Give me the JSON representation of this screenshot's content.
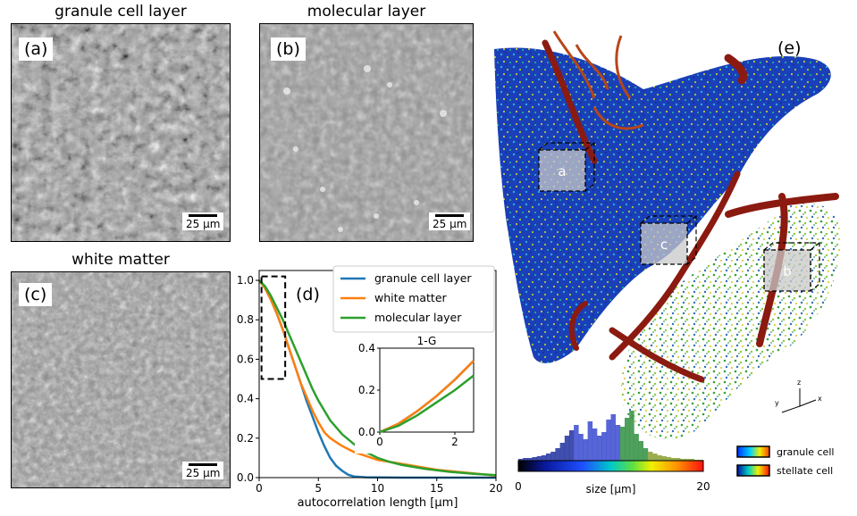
{
  "panels": {
    "a": {
      "title": "granule cell layer",
      "label": "(a)",
      "scale": "25 µm"
    },
    "b": {
      "title": "molecular layer",
      "label": "(b)",
      "scale": "25 µm"
    },
    "c": {
      "title": "white matter",
      "label": "(c)",
      "scale": "25 µm"
    },
    "d": {
      "label": "(d)"
    },
    "e": {
      "label": "(e)",
      "box_labels": [
        "a",
        "c",
        "b"
      ],
      "axes": {
        "x": "x",
        "y": "y",
        "z": "z"
      }
    }
  },
  "colors": {
    "granule cell layer": "#1f77b4",
    "white matter": "#ff7f0e",
    "molecular layer": "#2ca02c",
    "vessel": "#8b1a10"
  },
  "chart_data": [
    {
      "type": "line",
      "xlabel": "autocorrelation length [µm]",
      "ylabel": "",
      "xlim": [
        0,
        20
      ],
      "ylim": [
        0,
        1.05
      ],
      "xticks": [
        0,
        5,
        10,
        15,
        20
      ],
      "yticks": [
        0.0,
        0.2,
        0.4,
        0.6,
        0.8,
        1.0
      ],
      "legend_position": "top-right",
      "series": [
        {
          "name": "granule cell layer",
          "x": [
            0,
            0.5,
            1,
            1.5,
            2,
            2.5,
            3,
            3.5,
            4,
            4.5,
            5,
            5.5,
            6,
            6.5,
            7,
            7.5,
            8,
            9,
            10,
            12,
            15,
            20
          ],
          "y": [
            1.0,
            0.96,
            0.9,
            0.83,
            0.75,
            0.66,
            0.57,
            0.48,
            0.39,
            0.31,
            0.23,
            0.16,
            0.1,
            0.06,
            0.035,
            0.015,
            0.006,
            0.002,
            0.001,
            0,
            0,
            0
          ]
        },
        {
          "name": "white matter",
          "x": [
            0,
            0.5,
            1,
            1.5,
            2,
            2.5,
            3,
            3.5,
            4,
            4.5,
            5,
            5.5,
            6,
            6.5,
            7,
            8,
            9,
            10,
            12,
            15,
            20
          ],
          "y": [
            1.0,
            0.96,
            0.9,
            0.83,
            0.75,
            0.66,
            0.57,
            0.48,
            0.41,
            0.34,
            0.28,
            0.23,
            0.2,
            0.18,
            0.16,
            0.13,
            0.11,
            0.09,
            0.07,
            0.04,
            0.01
          ]
        },
        {
          "name": "molecular layer",
          "x": [
            0,
            0.5,
            1,
            1.5,
            2,
            2.5,
            3,
            3.5,
            4,
            4.5,
            5,
            6,
            7,
            8,
            9,
            10,
            11,
            12,
            14,
            16,
            18,
            20
          ],
          "y": [
            1.0,
            0.97,
            0.92,
            0.86,
            0.8,
            0.73,
            0.66,
            0.59,
            0.52,
            0.45,
            0.39,
            0.29,
            0.22,
            0.17,
            0.13,
            0.1,
            0.08,
            0.065,
            0.045,
            0.03,
            0.02,
            0.012
          ]
        }
      ],
      "annotation_box": {
        "x": [
          0.2,
          2.2
        ],
        "y": [
          0.5,
          1.02
        ]
      }
    },
    {
      "type": "line",
      "title": "1-G",
      "xlim": [
        0,
        2.5
      ],
      "ylim": [
        0,
        0.4
      ],
      "xticks": [
        0,
        2
      ],
      "yticks": [
        0.0,
        0.2,
        0.4
      ],
      "series": [
        {
          "name": "granule cell layer",
          "x": [
            0,
            0.5,
            1,
            1.5,
            2,
            2.5
          ],
          "y": [
            0,
            0.04,
            0.1,
            0.17,
            0.25,
            0.34
          ]
        },
        {
          "name": "white matter",
          "x": [
            0,
            0.5,
            1,
            1.5,
            2,
            2.5
          ],
          "y": [
            0,
            0.04,
            0.1,
            0.17,
            0.25,
            0.34
          ]
        },
        {
          "name": "molecular layer",
          "x": [
            0,
            0.5,
            1,
            1.5,
            2,
            2.5
          ],
          "y": [
            0,
            0.03,
            0.08,
            0.14,
            0.2,
            0.27
          ]
        }
      ]
    },
    {
      "type": "bar",
      "xlabel": "size [µm]",
      "xlim": [
        0,
        20
      ],
      "xticks": [
        0,
        20
      ],
      "colorbar": [
        "#000000",
        "#0a1aa0",
        "#1e50ff",
        "#00c8c8",
        "#60e040",
        "#f0f000",
        "#ff9000",
        "#ff1010"
      ],
      "legend": [
        {
          "name": "granule cell",
          "gradient": [
            "#0030ff",
            "#00d0ff",
            "#f0f000",
            "#ff4000"
          ]
        },
        {
          "name": "stellate cell",
          "gradient": [
            "#0010a0",
            "#00d0c0",
            "#f0f000",
            "#ff1000"
          ]
        }
      ]
    }
  ]
}
